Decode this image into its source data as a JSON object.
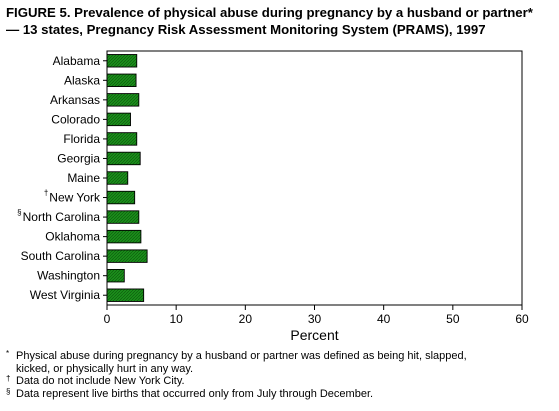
{
  "title": {
    "line1": "FIGURE 5. Prevalence of physical abuse during pregnancy by a husband or partner*",
    "line2": "— 13 states, Pregnancy Risk Assessment Monitoring System (PRAMS), 1997"
  },
  "chart_data": {
    "type": "bar",
    "orientation": "horizontal",
    "categories": [
      {
        "label": "Alabama",
        "mark": ""
      },
      {
        "label": "Alaska",
        "mark": ""
      },
      {
        "label": "Arkansas",
        "mark": ""
      },
      {
        "label": "Colorado",
        "mark": ""
      },
      {
        "label": "Florida",
        "mark": ""
      },
      {
        "label": "Georgia",
        "mark": ""
      },
      {
        "label": "Maine",
        "mark": ""
      },
      {
        "label": "New York",
        "mark": "†"
      },
      {
        "label": "North Carolina",
        "mark": "§"
      },
      {
        "label": "Oklahoma",
        "mark": ""
      },
      {
        "label": "South Carolina",
        "mark": ""
      },
      {
        "label": "Washington",
        "mark": ""
      },
      {
        "label": "West Virginia",
        "mark": ""
      }
    ],
    "values": [
      4.3,
      4.2,
      4.6,
      3.4,
      4.3,
      4.8,
      3.0,
      4.0,
      4.6,
      4.9,
      5.8,
      2.5,
      5.3
    ],
    "xlabel": "Percent",
    "xlim": [
      0,
      60
    ],
    "xticks": [
      0,
      10,
      20,
      30,
      40,
      50,
      60
    ],
    "bar_color": "#1a8f1a",
    "grid": false
  },
  "footnotes": [
    {
      "mark": "*",
      "lines": [
        "Physical abuse during pregnancy by a husband or partner was defined as being hit, slapped,",
        "kicked, or physically hurt in any way."
      ]
    },
    {
      "mark": "†",
      "lines": [
        "Data do not include New York City."
      ]
    },
    {
      "mark": "§",
      "lines": [
        "Data represent live births that occurred only from July through December."
      ]
    }
  ]
}
